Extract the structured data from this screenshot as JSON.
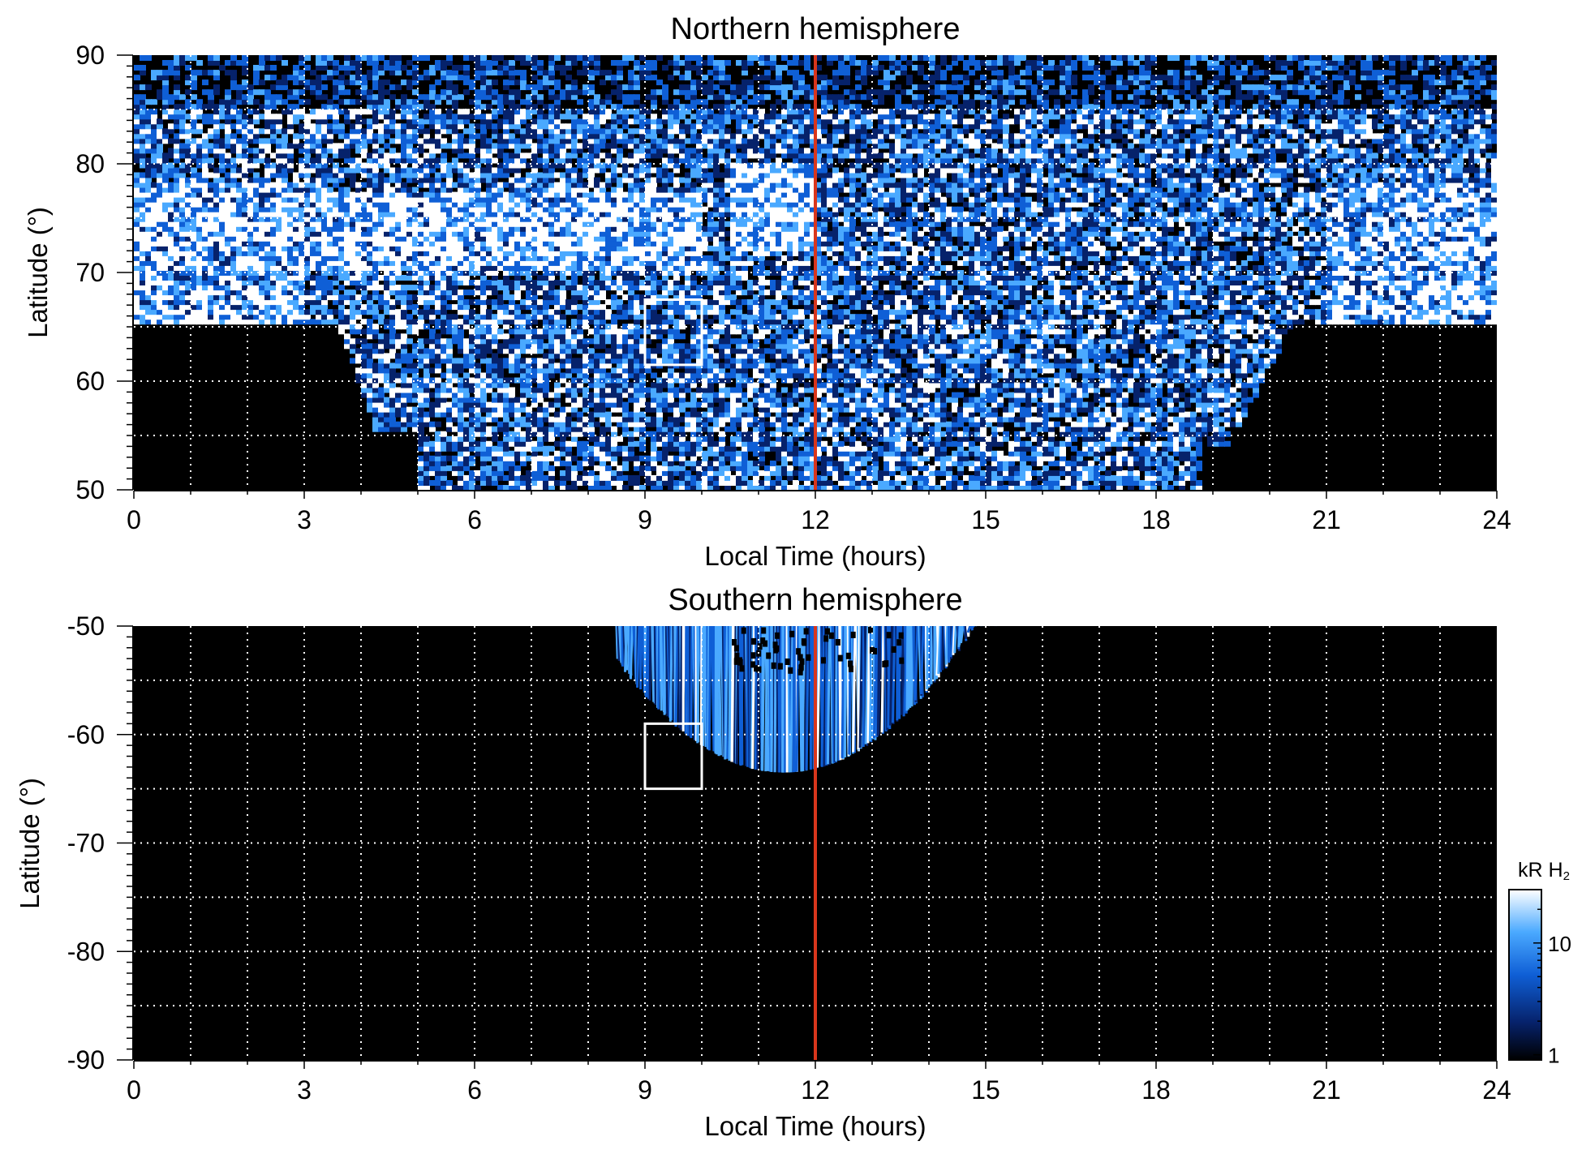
{
  "colors": {
    "background": "#000000",
    "noon_line": "#d9361c",
    "box": "#ffffff",
    "grid": "#ffffff",
    "colormap": [
      "#000000",
      "#06226b",
      "#0f5fd6",
      "#4aa9ff",
      "#ffffff"
    ]
  },
  "chart_data": [
    {
      "type": "heatmap",
      "title": "Northern hemisphere",
      "xlabel": "Local Time (hours)",
      "ylabel": "Latitude (°)",
      "xlim": [
        0,
        24
      ],
      "ylim": [
        50,
        90
      ],
      "x_ticks": [
        0,
        3,
        6,
        9,
        12,
        15,
        18,
        21,
        24
      ],
      "x_tick_labels": [
        "0",
        "3",
        "6",
        "9",
        "12",
        "15",
        "18",
        "21",
        "24"
      ],
      "y_ticks": [
        50,
        60,
        70,
        80,
        90
      ],
      "y_tick_labels": [
        "50",
        "60",
        "70",
        "80",
        "90"
      ],
      "grid": true,
      "grid_x_step": 1,
      "grid_y_step": 5,
      "noon_line_x": 12,
      "box": {
        "x": [
          9,
          10
        ],
        "y": [
          61.5,
          67.5
        ]
      },
      "description_values": {
        "bright_arc_lat": [
          65,
          80
        ],
        "coverage": "full dayside and flanks, dark lower corners near 0-4.5 h and 19-24 h"
      }
    },
    {
      "type": "heatmap",
      "title": "Southern hemisphere",
      "xlabel": "Local Time (hours)",
      "ylabel": "Latitude (°)",
      "xlim": [
        0,
        24
      ],
      "ylim": [
        -90,
        -50
      ],
      "x_ticks": [
        0,
        3,
        6,
        9,
        12,
        15,
        18,
        21,
        24
      ],
      "x_tick_labels": [
        "0",
        "3",
        "6",
        "9",
        "12",
        "15",
        "18",
        "21",
        "24"
      ],
      "y_ticks": [
        -90,
        -80,
        -70,
        -60,
        -50
      ],
      "y_tick_labels": [
        "-90",
        "-80",
        "-70",
        "-60",
        "-50"
      ],
      "grid": true,
      "grid_x_step": 1,
      "grid_y_step": 5,
      "noon_line_x": 12,
      "box": {
        "x": [
          9,
          10
        ],
        "y": [
          -65,
          -59
        ]
      },
      "coverage_lt": [
        8.5,
        15.2
      ],
      "coverage_lowest_lat": -63.5
    }
  ],
  "colorbar": {
    "label_main": "kR H",
    "label_sub": "2",
    "ticks": [
      1,
      10
    ],
    "tick_labels": [
      "1",
      "10"
    ],
    "range": [
      0.9,
      30
    ],
    "scale": "log"
  }
}
